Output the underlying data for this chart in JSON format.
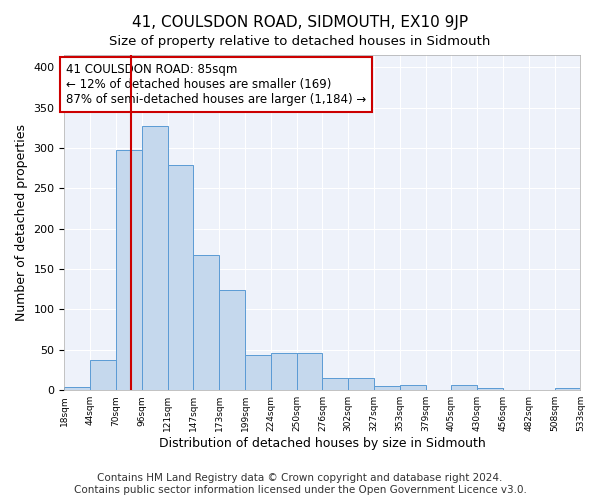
{
  "title": "41, COULSDON ROAD, SIDMOUTH, EX10 9JP",
  "subtitle": "Size of property relative to detached houses in Sidmouth",
  "xlabel": "Distribution of detached houses by size in Sidmouth",
  "ylabel": "Number of detached properties",
  "bar_color": "#c5d8ed",
  "bar_edge_color": "#5b9bd5",
  "background_color": "#eef2fa",
  "grid_color": "#ffffff",
  "annotation_text": "41 COULSDON ROAD: 85sqm\n← 12% of detached houses are smaller (169)\n87% of semi-detached houses are larger (1,184) →",
  "vline_color": "#cc0000",
  "vline_bar_index": 2,
  "bin_labels": [
    "18sqm",
    "44sqm",
    "70sqm",
    "96sqm",
    "121sqm",
    "147sqm",
    "173sqm",
    "199sqm",
    "224sqm",
    "250sqm",
    "276sqm",
    "302sqm",
    "327sqm",
    "353sqm",
    "379sqm",
    "405sqm",
    "430sqm",
    "456sqm",
    "482sqm",
    "508sqm",
    "533sqm"
  ],
  "bar_heights": [
    4,
    38,
    298,
    327,
    279,
    168,
    124,
    44,
    46,
    46,
    15,
    15,
    5,
    6,
    0,
    6,
    3,
    0,
    0,
    3
  ],
  "ylim": [
    0,
    415
  ],
  "yticks": [
    0,
    50,
    100,
    150,
    200,
    250,
    300,
    350,
    400
  ],
  "footer": "Contains HM Land Registry data © Crown copyright and database right 2024.\nContains public sector information licensed under the Open Government Licence v3.0.",
  "footer_fontsize": 7.5,
  "title_fontsize": 11,
  "xlabel_fontsize": 9,
  "ylabel_fontsize": 9,
  "annotation_fontsize": 8.5,
  "annotation_box_color": "#ffffff",
  "annotation_box_edge": "#cc0000"
}
